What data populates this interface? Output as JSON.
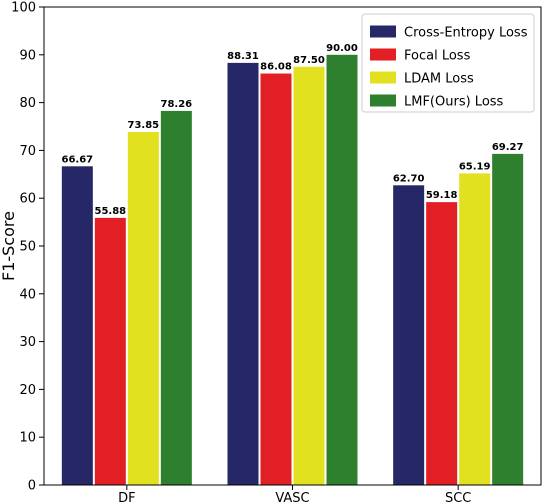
{
  "chart_data": {
    "type": "bar",
    "title": "",
    "xlabel": "",
    "ylabel": "F1-Score",
    "ylim": [
      0,
      100
    ],
    "yticks": [
      0,
      10,
      20,
      30,
      40,
      50,
      60,
      70,
      80,
      90,
      100
    ],
    "categories": [
      "DF",
      "VASC",
      "SCC"
    ],
    "series": [
      {
        "name": "Cross-Entropy Loss",
        "color": "#262766",
        "values": [
          66.67,
          88.31,
          62.7
        ],
        "labels": [
          "66.67",
          "88.31",
          "62.70"
        ]
      },
      {
        "name": "Focal Loss",
        "color": "#e11f24",
        "values": [
          55.88,
          86.08,
          59.18
        ],
        "labels": [
          "55.88",
          "86.08",
          "59.18"
        ]
      },
      {
        "name": "LDAM Loss",
        "color": "#e1e11f",
        "values": [
          73.85,
          87.5,
          65.19
        ],
        "labels": [
          "73.85",
          "87.50",
          "65.19"
        ]
      },
      {
        "name": "LMF(Ours) Loss",
        "color": "#2e7f2e",
        "values": [
          78.26,
          90.0,
          69.27
        ],
        "labels": [
          "78.26",
          "90.00",
          "69.27"
        ]
      }
    ],
    "legend": {
      "position": "top-right"
    },
    "grid": false
  }
}
